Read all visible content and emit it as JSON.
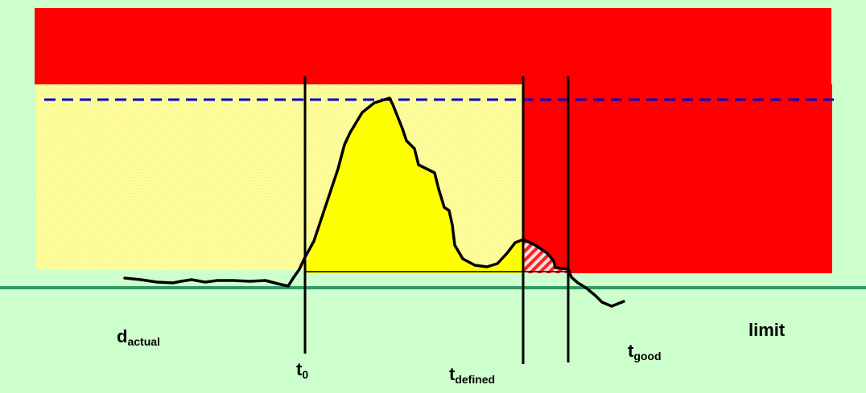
{
  "colors": {
    "background": "#ccffcc",
    "red_zone": "#ff0000",
    "yellow_zone": "#ffff99",
    "yellow_fill": "#ffff00",
    "limit_line": "#339966",
    "dashed_line": "#0000cc",
    "curve": "#000000"
  },
  "labels": {
    "d_actual": {
      "main": "d",
      "sub": "actual"
    },
    "t0": {
      "main": "t",
      "sub": "0"
    },
    "t_defined": {
      "main": "t",
      "sub": "defined"
    },
    "t_good": {
      "main": "t",
      "sub": "good"
    },
    "limit": "limit"
  }
}
